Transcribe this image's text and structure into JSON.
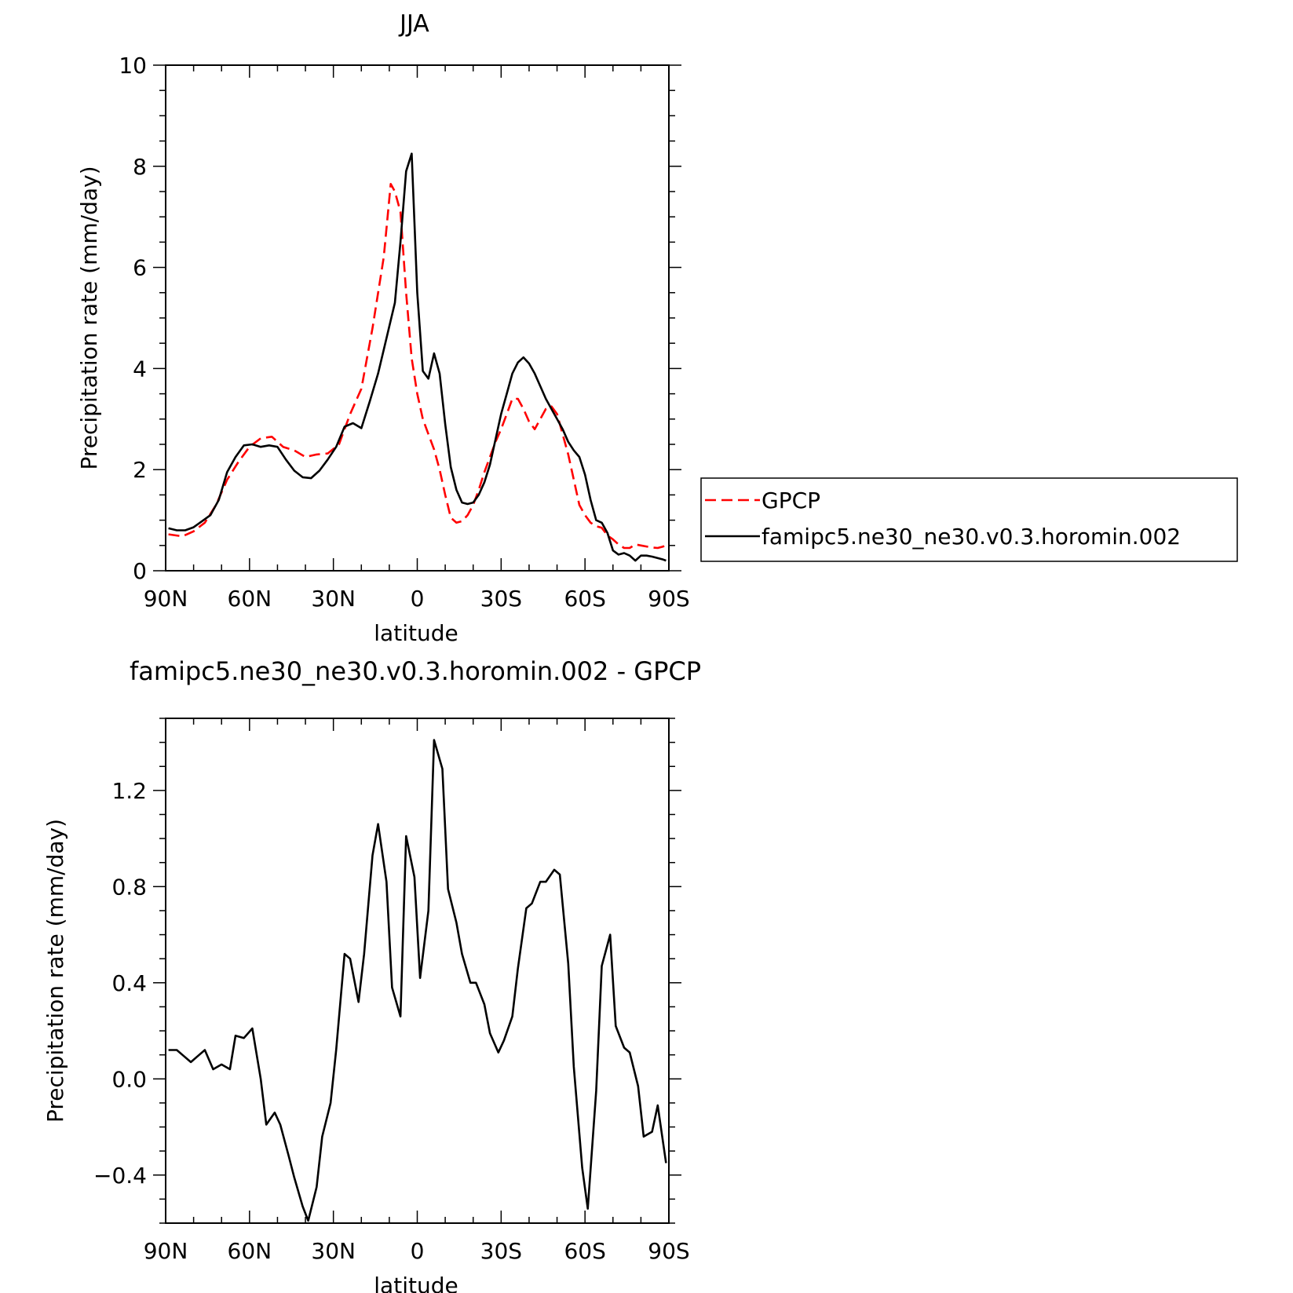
{
  "chart_data": [
    {
      "type": "line",
      "title": "JJA",
      "xlabel": "latitude",
      "ylabel": "Precipitation rate (mm/day)",
      "xlim": [
        90,
        -90
      ],
      "ylim": [
        0,
        10
      ],
      "xticks": [
        {
          "v": 90,
          "label": "90N"
        },
        {
          "v": 60,
          "label": "60N"
        },
        {
          "v": 30,
          "label": "30N"
        },
        {
          "v": 0,
          "label": "0"
        },
        {
          "v": -30,
          "label": "30S"
        },
        {
          "v": -60,
          "label": "60S"
        },
        {
          "v": -90,
          "label": "90S"
        }
      ],
      "yticks": [
        {
          "v": 0,
          "label": "0"
        },
        {
          "v": 2,
          "label": "2"
        },
        {
          "v": 4,
          "label": "4"
        },
        {
          "v": 6,
          "label": "6"
        },
        {
          "v": 8,
          "label": "8"
        },
        {
          "v": 10,
          "label": "10"
        }
      ],
      "legend": {
        "placement": "right"
      },
      "series": [
        {
          "name": "GPCP",
          "color": "#ff0000",
          "dash": "dashed",
          "x": [
            89,
            84,
            80,
            76,
            72,
            68,
            64,
            60,
            56,
            52,
            48,
            44,
            40,
            36,
            32,
            28,
            24,
            20,
            16,
            12,
            9.5,
            8,
            6,
            4,
            2,
            0,
            -2,
            -4,
            -6,
            -8,
            -10,
            -12,
            -14,
            -16,
            -18,
            -20,
            -22,
            -24,
            -26,
            -28,
            -30,
            -32,
            -34,
            -36,
            -38,
            -40,
            -42,
            -44,
            -46,
            -48,
            -50,
            -52,
            -54,
            -56,
            -58,
            -60,
            -62,
            -64,
            -66,
            -68,
            -70,
            -72,
            -74,
            -76,
            -78,
            -80,
            -82,
            -84,
            -86,
            -88,
            -89
          ],
          "y": [
            0.72,
            0.68,
            0.78,
            0.95,
            1.3,
            1.8,
            2.15,
            2.45,
            2.62,
            2.65,
            2.45,
            2.38,
            2.25,
            2.3,
            2.32,
            2.5,
            3.1,
            3.6,
            4.8,
            6.2,
            7.65,
            7.5,
            7.1,
            5.5,
            4.2,
            3.5,
            3.0,
            2.7,
            2.4,
            2.0,
            1.5,
            1.05,
            0.95,
            0.98,
            1.1,
            1.3,
            1.6,
            1.95,
            2.25,
            2.55,
            2.8,
            3.1,
            3.4,
            3.4,
            3.2,
            2.95,
            2.8,
            3.0,
            3.2,
            3.25,
            3.1,
            2.7,
            2.3,
            1.8,
            1.3,
            1.1,
            0.95,
            0.88,
            0.85,
            0.7,
            0.62,
            0.52,
            0.45,
            0.45,
            0.52,
            0.5,
            0.48,
            0.46,
            0.45,
            0.48,
            0.52
          ]
        },
        {
          "name": "famipc5.ne30_ne30.v0.3.horomin.002",
          "color": "#000000",
          "dash": "solid",
          "x": [
            89,
            86,
            83,
            80,
            77,
            74,
            71,
            68,
            65,
            62,
            59,
            56,
            53,
            50,
            47,
            44,
            41,
            38,
            35,
            32,
            29,
            26,
            23,
            20,
            17,
            14,
            11,
            8,
            6,
            4,
            2,
            0,
            -2,
            -4,
            -6,
            -8,
            -10,
            -12,
            -14,
            -16,
            -18,
            -20,
            -22,
            -24,
            -26,
            -28,
            -30,
            -32,
            -34,
            -36,
            -38,
            -40,
            -42,
            -44,
            -46,
            -48,
            -50,
            -52,
            -54,
            -56,
            -58,
            -60,
            -62,
            -64,
            -66,
            -68,
            -70,
            -72,
            -74,
            -76,
            -78,
            -80,
            -82,
            -84,
            -86,
            -88,
            -89
          ],
          "y": [
            0.84,
            0.8,
            0.8,
            0.86,
            0.98,
            1.1,
            1.4,
            1.95,
            2.25,
            2.48,
            2.5,
            2.45,
            2.48,
            2.45,
            2.2,
            1.98,
            1.85,
            1.83,
            1.98,
            2.2,
            2.45,
            2.85,
            2.92,
            2.82,
            3.35,
            3.9,
            4.6,
            5.3,
            6.5,
            7.9,
            8.25,
            5.5,
            3.95,
            3.8,
            4.3,
            3.9,
            2.9,
            2.05,
            1.6,
            1.35,
            1.32,
            1.35,
            1.5,
            1.75,
            2.1,
            2.6,
            3.1,
            3.5,
            3.9,
            4.12,
            4.22,
            4.1,
            3.9,
            3.65,
            3.4,
            3.2,
            3.0,
            2.8,
            2.55,
            2.38,
            2.25,
            1.9,
            1.4,
            1.0,
            0.95,
            0.75,
            0.4,
            0.32,
            0.35,
            0.3,
            0.2,
            0.3,
            0.3,
            0.28,
            0.25,
            0.22,
            0.2
          ]
        }
      ]
    },
    {
      "type": "line",
      "title": "famipc5.ne30_ne30.v0.3.horomin.002 - GPCP",
      "xlabel": "latitude",
      "ylabel": "Precipitation rate (mm/day)",
      "xlim": [
        90,
        -90
      ],
      "ylim": [
        -0.6,
        1.5
      ],
      "xticks": [
        {
          "v": 90,
          "label": "90N"
        },
        {
          "v": 60,
          "label": "60N"
        },
        {
          "v": 30,
          "label": "30N"
        },
        {
          "v": 0,
          "label": "0"
        },
        {
          "v": -30,
          "label": "30S"
        },
        {
          "v": -60,
          "label": "60S"
        },
        {
          "v": -90,
          "label": "90S"
        }
      ],
      "yticks": [
        {
          "v": -0.4,
          "label": "−0.4"
        },
        {
          "v": 0.0,
          "label": "0.0"
        },
        {
          "v": 0.4,
          "label": "0.4"
        },
        {
          "v": 0.8,
          "label": "0.8"
        },
        {
          "v": 1.2,
          "label": "1.2"
        }
      ],
      "series": [
        {
          "color": "#000000",
          "dash": "solid",
          "x": [
            89,
            86,
            84,
            81,
            78,
            76,
            73,
            70,
            67,
            65,
            62,
            59,
            56,
            54,
            51,
            49,
            46,
            44,
            41,
            39,
            36,
            34,
            31,
            29,
            26,
            24,
            21,
            19,
            16,
            14,
            11,
            9,
            6,
            4,
            1,
            -1,
            -4,
            -6,
            -9,
            -11,
            -14,
            -16,
            -19,
            -21,
            -24,
            -26,
            -29,
            -31,
            -34,
            -36,
            -39,
            -41,
            -44,
            -46,
            -49,
            -51,
            -54,
            -56,
            -59,
            -61,
            -64,
            -66,
            -69,
            -71,
            -74,
            -76,
            -79,
            -81,
            -84,
            -86,
            -89
          ],
          "y": [
            0.12,
            0.12,
            0.1,
            0.07,
            0.1,
            0.12,
            0.04,
            0.06,
            0.04,
            0.18,
            0.17,
            0.21,
            0.0,
            -0.19,
            -0.14,
            -0.19,
            -0.32,
            -0.41,
            -0.53,
            -0.59,
            -0.45,
            -0.24,
            -0.1,
            0.12,
            0.52,
            0.5,
            0.32,
            0.52,
            0.93,
            1.06,
            0.82,
            0.38,
            0.26,
            1.01,
            0.84,
            0.42,
            0.7,
            1.41,
            1.29,
            0.79,
            0.65,
            0.52,
            0.4,
            0.4,
            0.31,
            0.19,
            0.11,
            0.16,
            0.26,
            0.46,
            0.71,
            0.73,
            0.82,
            0.82,
            0.87,
            0.85,
            0.48,
            0.05,
            -0.37,
            -0.54,
            -0.05,
            0.47,
            0.6,
            0.22,
            0.13,
            0.11,
            -0.03,
            -0.24,
            -0.22,
            -0.11,
            -0.35
          ]
        }
      ]
    }
  ]
}
